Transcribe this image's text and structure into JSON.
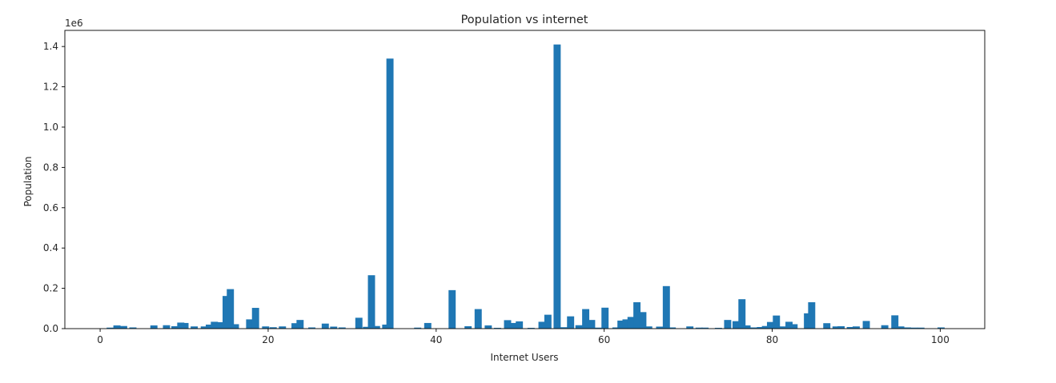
{
  "chart_data": {
    "type": "bar",
    "title": "Population vs internet",
    "xlabel": "Internet Users",
    "ylabel": "Population",
    "y_offset_label": "1e6",
    "y_multiplier": 1000000,
    "xlim": [
      -4.2,
      105.3
    ],
    "ylim": [
      0,
      1.48
    ],
    "xticks": [
      0,
      20,
      40,
      60,
      80,
      100
    ],
    "yticks": [
      0.0,
      0.2,
      0.4,
      0.6,
      0.8,
      1.0,
      1.2,
      1.4
    ],
    "xtick_labels": [
      "0",
      "20",
      "40",
      "60",
      "80",
      "100"
    ],
    "ytick_labels": [
      "0.0",
      "0.2",
      "0.4",
      "0.6",
      "0.8",
      "1.0",
      "1.2",
      "1.4"
    ],
    "bar_width": 0.85,
    "grid": false,
    "color": "#1f77b4",
    "series": [
      {
        "x": [
          1.2,
          2.0,
          2.8,
          3.9,
          6.4,
          7.9,
          8.9,
          9.6,
          10.1,
          11.2,
          12.4,
          13.0,
          13.6,
          14.3,
          15.0,
          15.5,
          16.1,
          17.8,
          18.5,
          19.7,
          20.6,
          21.7,
          23.2,
          23.8,
          25.2,
          26.8,
          27.8,
          28.8,
          30.8,
          31.7,
          32.3,
          32.9,
          34.0,
          34.5,
          37.8,
          39.0,
          41.9,
          43.8,
          45.0,
          46.2,
          47.3,
          48.5,
          49.2,
          49.9,
          51.3,
          52.6,
          53.3,
          54.4,
          55.2,
          56.0,
          57.0,
          57.8,
          58.5,
          59.3,
          60.1,
          61.4,
          62.0,
          62.6,
          63.2,
          63.9,
          64.6,
          65.3,
          66.6,
          67.4,
          68.1,
          70.2,
          71.3,
          72.0,
          73.6,
          74.7,
          75.7,
          76.4,
          77.0,
          77.8,
          78.6,
          79.2,
          79.8,
          80.5,
          81.3,
          82.0,
          82.6,
          84.2,
          84.7,
          86.5,
          87.6,
          88.2,
          89.3,
          90.0,
          91.2,
          93.4,
          94.6,
          95.3,
          96.1,
          96.9,
          97.7,
          100.1
        ],
        "values": [
          0.005,
          0.016,
          0.013,
          0.006,
          0.016,
          0.017,
          0.012,
          0.03,
          0.028,
          0.011,
          0.011,
          0.02,
          0.034,
          0.032,
          0.162,
          0.196,
          0.022,
          0.046,
          0.103,
          0.011,
          0.007,
          0.011,
          0.027,
          0.043,
          0.006,
          0.025,
          0.01,
          0.006,
          0.054,
          0.009,
          0.265,
          0.013,
          0.02,
          1.34,
          0.005,
          0.028,
          0.191,
          0.012,
          0.097,
          0.016,
          0.004,
          0.042,
          0.028,
          0.036,
          0.004,
          0.034,
          0.069,
          1.41,
          0.007,
          0.061,
          0.017,
          0.097,
          0.043,
          0.005,
          0.104,
          0.006,
          0.04,
          0.046,
          0.058,
          0.131,
          0.082,
          0.011,
          0.01,
          0.211,
          0.006,
          0.011,
          0.005,
          0.005,
          0.004,
          0.043,
          0.037,
          0.146,
          0.016,
          0.006,
          0.008,
          0.013,
          0.033,
          0.065,
          0.011,
          0.034,
          0.022,
          0.076,
          0.131,
          0.027,
          0.011,
          0.012,
          0.008,
          0.011,
          0.038,
          0.017,
          0.066,
          0.011,
          0.006,
          0.005,
          0.005,
          0.006
        ]
      }
    ]
  }
}
